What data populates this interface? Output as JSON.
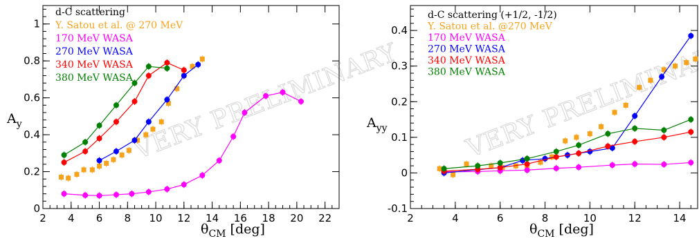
{
  "chart_data": [
    {
      "type": "scatter",
      "id": "ay",
      "ylabel_main": "A",
      "ylabel_sub": "y",
      "xlabel_main": "θ",
      "xlabel_sub": "CM",
      "xlabel_unit": " [deg]",
      "xlim": [
        2,
        23
      ],
      "ylim": [
        0,
        1.1
      ],
      "xticks": [
        "2",
        "4",
        "6",
        "8",
        "10",
        "12",
        "14",
        "16",
        "18",
        "20",
        "22"
      ],
      "xtick_values": [
        2,
        4,
        6,
        8,
        10,
        12,
        14,
        16,
        18,
        20,
        22
      ],
      "yticks": [
        "0",
        "0.2",
        "0.4",
        "0.6",
        "0.8",
        "1"
      ],
      "ytick_values": [
        0,
        0.2,
        0.4,
        0.6,
        0.8,
        1.0
      ],
      "watermark": "VERY PRELIMINARY",
      "legend_title": "d-C scattering",
      "series": [
        {
          "name": "Y. Satou et al. @ 270 MeV",
          "color": "#f7a21b",
          "marker": "square",
          "line": false,
          "x": [
            3.3,
            3.8,
            4.4,
            4.9,
            5.5,
            6.0,
            6.5,
            7.0,
            7.6,
            8.1,
            8.7,
            9.3,
            9.8,
            10.4,
            10.9,
            11.5,
            12.0,
            12.6,
            13.3
          ],
          "y": [
            0.17,
            0.165,
            0.185,
            0.21,
            0.21,
            0.23,
            0.245,
            0.265,
            0.29,
            0.315,
            0.37,
            0.4,
            0.43,
            0.47,
            0.57,
            0.65,
            0.72,
            0.77,
            0.81
          ]
        },
        {
          "name": "170 MeV WASA",
          "color": "#ff00ff",
          "marker": "circle",
          "line": true,
          "x": [
            3.5,
            5.0,
            6.0,
            7.2,
            8.3,
            9.5,
            10.8,
            12.0,
            13.3,
            14.5,
            15.5,
            16.3,
            17.8,
            19.0,
            20.3
          ],
          "y": [
            0.08,
            0.072,
            0.07,
            0.075,
            0.08,
            0.09,
            0.105,
            0.13,
            0.18,
            0.26,
            0.39,
            0.52,
            0.61,
            0.63,
            0.58
          ]
        },
        {
          "name": "270 MeV WASA",
          "color": "#0000ff",
          "marker": "circle",
          "line": true,
          "x": [
            6.0,
            7.2,
            8.5,
            9.5,
            10.8,
            12.0,
            13.0
          ],
          "y": [
            0.26,
            0.31,
            0.37,
            0.47,
            0.59,
            0.72,
            0.78
          ]
        },
        {
          "name": "340 MeV WASA",
          "color": "#ff0000",
          "marker": "circle",
          "line": true,
          "x": [
            3.5,
            5.0,
            6.0,
            7.2,
            8.5,
            9.5,
            10.8,
            12.0
          ],
          "y": [
            0.25,
            0.31,
            0.38,
            0.47,
            0.58,
            0.72,
            0.79,
            0.75
          ]
        },
        {
          "name": "380 MeV WASA",
          "color": "#008000",
          "marker": "circle",
          "line": true,
          "x": [
            3.5,
            5.0,
            6.0,
            7.2,
            8.5,
            9.5,
            10.8
          ],
          "y": [
            0.29,
            0.36,
            0.45,
            0.56,
            0.68,
            0.77,
            0.76
          ]
        }
      ]
    },
    {
      "type": "scatter",
      "id": "ayy",
      "ylabel_main": "A",
      "ylabel_sub": "yy",
      "xlabel_main": "θ",
      "xlabel_sub": "CM",
      "xlabel_unit": " [deg]",
      "xlim": [
        2,
        14.8
      ],
      "ylim": [
        -0.1,
        0.47
      ],
      "xticks": [
        "2",
        "4",
        "6",
        "8",
        "10",
        "12",
        "14"
      ],
      "xtick_values": [
        2,
        4,
        6,
        8,
        10,
        12,
        14
      ],
      "yticks": [
        "-0.1",
        "0",
        "0.1",
        "0.2",
        "0.3",
        "0.4"
      ],
      "ytick_values": [
        -0.1,
        0,
        0.1,
        0.2,
        0.3,
        0.4
      ],
      "watermark": "VERY PRELIMINARY",
      "legend_title": "d-C scattering (+1/2, -1/2)",
      "series": [
        {
          "name": "Y. Satou et al. @270 MeV",
          "color": "#f7a21b",
          "marker": "square",
          "line": false,
          "x": [
            3.3,
            3.9,
            4.5,
            5.0,
            5.6,
            6.1,
            6.7,
            7.2,
            7.8,
            8.3,
            8.9,
            9.4,
            10.0,
            10.5,
            11.1,
            11.6,
            12.2,
            12.7,
            13.3,
            13.8,
            14.3,
            14.7
          ],
          "y": [
            0.012,
            -0.005,
            0.025,
            0.012,
            0.02,
            0.015,
            0.02,
            0.015,
            0.03,
            0.045,
            0.09,
            0.1,
            0.11,
            0.13,
            0.17,
            0.19,
            0.24,
            0.26,
            0.29,
            0.3,
            0.31,
            0.32
          ]
        },
        {
          "name": "170 MeV WASA",
          "color": "#ff00ff",
          "marker": "circle",
          "line": true,
          "x": [
            3.5,
            5.0,
            6.0,
            7.2,
            8.5,
            9.5,
            11.0,
            12.0,
            13.3,
            14.5
          ],
          "y": [
            0.003,
            0.004,
            0.006,
            0.008,
            0.013,
            0.016,
            0.022,
            0.025,
            0.024,
            0.029
          ]
        },
        {
          "name": "270 MeV WASA",
          "color": "#0000ff",
          "marker": "circle",
          "line": true,
          "x": [
            3.5,
            6.0,
            7.0,
            8.0,
            9.0,
            10.0,
            11.0,
            12.0,
            13.2,
            14.5
          ],
          "y": [
            0.0,
            0.015,
            0.035,
            0.04,
            0.05,
            0.06,
            0.07,
            0.16,
            0.27,
            0.385
          ]
        },
        {
          "name": "340 MeV WASA",
          "color": "#ff0000",
          "marker": "circle",
          "line": true,
          "x": [
            3.5,
            5.0,
            6.0,
            7.2,
            8.5,
            9.5,
            10.8,
            12.0,
            13.3,
            14.5
          ],
          "y": [
            0.005,
            0.01,
            0.015,
            0.025,
            0.045,
            0.055,
            0.075,
            0.088,
            0.1,
            0.115
          ]
        },
        {
          "name": "380 MeV WASA",
          "color": "#008000",
          "marker": "circle",
          "line": true,
          "x": [
            3.5,
            5.0,
            6.0,
            7.2,
            8.5,
            9.5,
            10.8,
            12.0,
            13.3,
            14.5
          ],
          "y": [
            0.012,
            0.02,
            0.028,
            0.04,
            0.06,
            0.078,
            0.11,
            0.125,
            0.12,
            0.15
          ]
        }
      ]
    }
  ]
}
